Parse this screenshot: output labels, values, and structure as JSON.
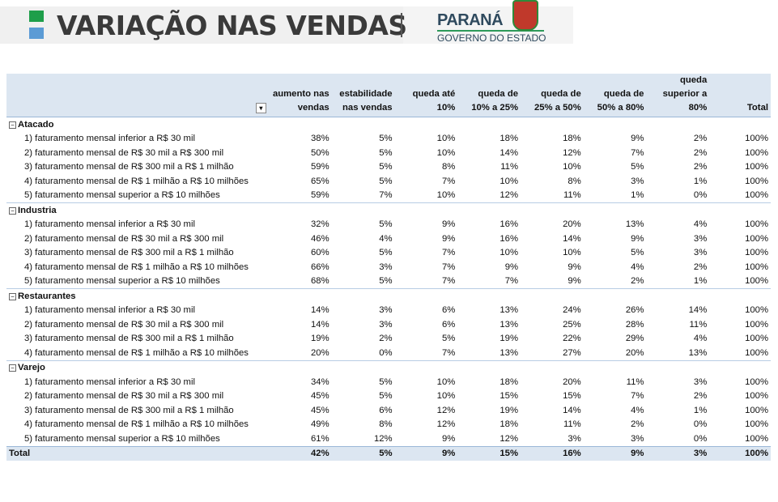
{
  "header": {
    "title": "VARIAÇÃO NAS VENDAS",
    "logo_name": "PARANÁ",
    "logo_sub": "GOVERNO DO ESTADO"
  },
  "columns": [
    "aumento nas vendas",
    "estabilidade nas vendas",
    "queda até 10%",
    "queda de 10% a 25%",
    "queda de 25% a 50%",
    "queda de 50% a 80%",
    "queda superior a 80%",
    "Total"
  ],
  "groups": [
    {
      "name": "Atacado",
      "rows": [
        {
          "label": "1) faturamento mensal inferior a R$ 30 mil",
          "values": [
            "38%",
            "5%",
            "10%",
            "18%",
            "18%",
            "9%",
            "2%",
            "100%"
          ]
        },
        {
          "label": "2) faturamento mensal de R$ 30 mil a R$ 300 mil",
          "values": [
            "50%",
            "5%",
            "10%",
            "14%",
            "12%",
            "7%",
            "2%",
            "100%"
          ]
        },
        {
          "label": "3) faturamento mensal de R$ 300 mil a R$ 1 milhão",
          "values": [
            "59%",
            "5%",
            "8%",
            "11%",
            "10%",
            "5%",
            "2%",
            "100%"
          ]
        },
        {
          "label": "4) faturamento mensal de R$ 1 milhão a R$ 10 milhões",
          "values": [
            "65%",
            "5%",
            "7%",
            "10%",
            "8%",
            "3%",
            "1%",
            "100%"
          ]
        },
        {
          "label": "5) faturamento mensal superior a R$ 10 milhões",
          "values": [
            "59%",
            "7%",
            "10%",
            "12%",
            "11%",
            "1%",
            "0%",
            "100%"
          ]
        }
      ]
    },
    {
      "name": "Industria",
      "rows": [
        {
          "label": "1) faturamento mensal inferior a R$ 30 mil",
          "values": [
            "32%",
            "5%",
            "9%",
            "16%",
            "20%",
            "13%",
            "4%",
            "100%"
          ]
        },
        {
          "label": "2) faturamento mensal de R$ 30 mil a R$ 300 mil",
          "values": [
            "46%",
            "4%",
            "9%",
            "16%",
            "14%",
            "9%",
            "3%",
            "100%"
          ]
        },
        {
          "label": "3) faturamento mensal de R$ 300 mil a R$ 1 milhão",
          "values": [
            "60%",
            "5%",
            "7%",
            "10%",
            "10%",
            "5%",
            "3%",
            "100%"
          ]
        },
        {
          "label": "4) faturamento mensal de R$ 1 milhão a R$ 10 milhões",
          "values": [
            "66%",
            "3%",
            "7%",
            "9%",
            "9%",
            "4%",
            "2%",
            "100%"
          ]
        },
        {
          "label": "5) faturamento mensal superior a R$ 10 milhões",
          "values": [
            "68%",
            "5%",
            "7%",
            "7%",
            "9%",
            "2%",
            "1%",
            "100%"
          ]
        }
      ]
    },
    {
      "name": "Restaurantes",
      "rows": [
        {
          "label": "1) faturamento mensal inferior a R$ 30 mil",
          "values": [
            "14%",
            "3%",
            "6%",
            "13%",
            "24%",
            "26%",
            "14%",
            "100%"
          ]
        },
        {
          "label": "2) faturamento mensal de R$ 30 mil a R$ 300 mil",
          "values": [
            "14%",
            "3%",
            "6%",
            "13%",
            "25%",
            "28%",
            "11%",
            "100%"
          ]
        },
        {
          "label": "3) faturamento mensal de R$ 300 mil a R$ 1 milhão",
          "values": [
            "19%",
            "2%",
            "5%",
            "19%",
            "22%",
            "29%",
            "4%",
            "100%"
          ]
        },
        {
          "label": "4) faturamento mensal de R$ 1 milhão a R$ 10 milhões",
          "values": [
            "20%",
            "0%",
            "7%",
            "13%",
            "27%",
            "20%",
            "13%",
            "100%"
          ]
        }
      ]
    },
    {
      "name": "Varejo",
      "rows": [
        {
          "label": "1) faturamento mensal inferior a R$ 30 mil",
          "values": [
            "34%",
            "5%",
            "10%",
            "18%",
            "20%",
            "11%",
            "3%",
            "100%"
          ]
        },
        {
          "label": "2) faturamento mensal de R$ 30 mil a R$ 300 mil",
          "values": [
            "45%",
            "5%",
            "10%",
            "15%",
            "15%",
            "7%",
            "2%",
            "100%"
          ]
        },
        {
          "label": "3) faturamento mensal de R$ 300 mil a R$ 1 milhão",
          "values": [
            "45%",
            "6%",
            "12%",
            "19%",
            "14%",
            "4%",
            "1%",
            "100%"
          ]
        },
        {
          "label": "4) faturamento mensal de R$ 1 milhão a R$ 10 milhões",
          "values": [
            "49%",
            "8%",
            "12%",
            "18%",
            "11%",
            "2%",
            "0%",
            "100%"
          ]
        },
        {
          "label": "5) faturamento mensal superior a R$ 10 milhões",
          "values": [
            "61%",
            "12%",
            "9%",
            "12%",
            "3%",
            "3%",
            "0%",
            "100%"
          ]
        }
      ]
    }
  ],
  "total": {
    "label": "Total",
    "values": [
      "42%",
      "5%",
      "9%",
      "15%",
      "16%",
      "9%",
      "3%",
      "100%"
    ]
  }
}
